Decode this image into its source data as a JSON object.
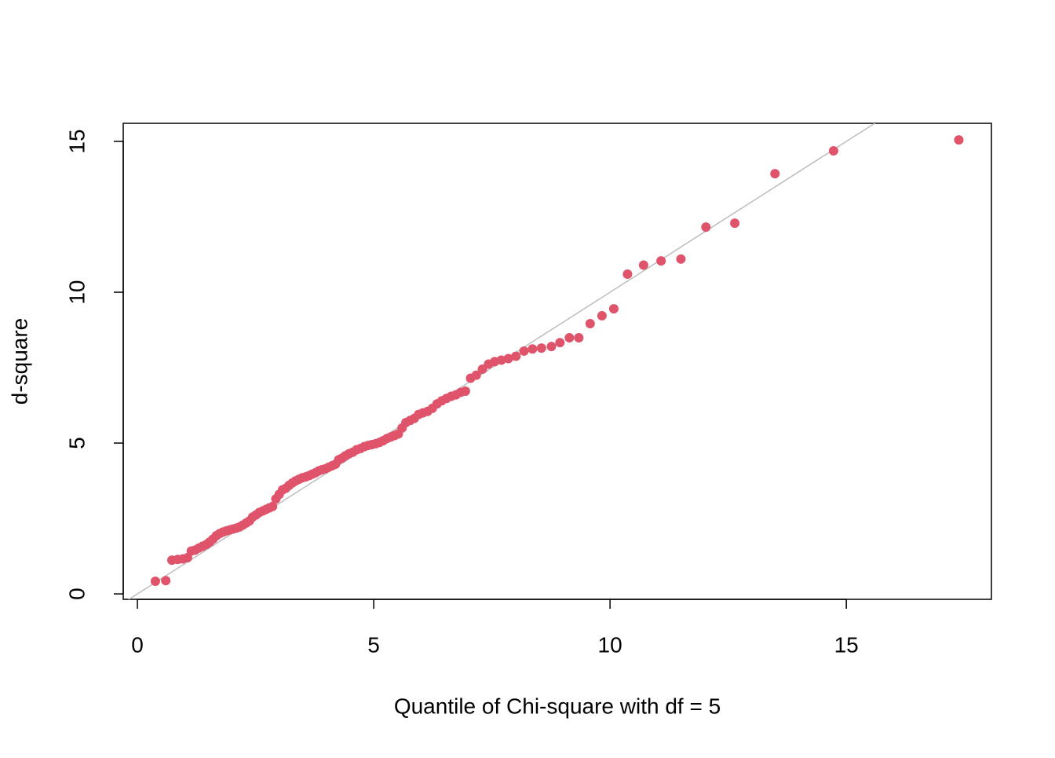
{
  "chart_data": {
    "type": "scatter",
    "x_label": "Quantile of Chi-square with df = 5",
    "y_label": "d-square",
    "color": "#df536b",
    "reference_line": {
      "slope": 1,
      "intercept": 0,
      "color": "#bebebe"
    },
    "xlim": [
      -0.3,
      18.07
    ],
    "ylim": [
      -0.18,
      15.6
    ],
    "xticks": [
      0,
      5,
      10,
      15
    ],
    "yticks": [
      0,
      5,
      10,
      15
    ],
    "x": [
      0.38,
      0.6,
      0.73,
      0.85,
      0.96,
      1.06,
      1.14,
      1.22,
      1.3,
      1.38,
      1.46,
      1.53,
      1.6,
      1.67,
      1.74,
      1.81,
      1.88,
      1.95,
      2.02,
      2.09,
      2.16,
      2.23,
      2.3,
      2.37,
      2.44,
      2.51,
      2.58,
      2.65,
      2.72,
      2.79,
      2.86,
      2.93,
      3.0,
      3.07,
      3.14,
      3.21,
      3.28,
      3.35,
      3.42,
      3.49,
      3.56,
      3.63,
      3.7,
      3.77,
      3.84,
      3.91,
      3.98,
      4.05,
      4.12,
      4.19,
      4.26,
      4.33,
      4.4,
      4.48,
      4.56,
      4.64,
      4.72,
      4.8,
      4.88,
      4.96,
      5.04,
      5.12,
      5.2,
      5.28,
      5.36,
      5.44,
      5.52,
      5.6,
      5.68,
      5.77,
      5.86,
      5.95,
      6.04,
      6.14,
      6.24,
      6.34,
      6.44,
      6.54,
      6.64,
      6.74,
      6.84,
      6.94,
      7.05,
      7.17,
      7.3,
      7.43,
      7.56,
      7.7,
      7.85,
      8.01,
      8.18,
      8.36,
      8.55,
      8.76,
      8.94,
      9.14,
      9.34,
      9.58,
      9.83,
      10.08,
      10.37,
      10.71,
      11.08,
      11.5,
      12.03,
      12.64,
      13.49,
      14.73,
      17.38
    ],
    "values": [
      0.42,
      0.44,
      1.12,
      1.14,
      1.16,
      1.2,
      1.42,
      1.45,
      1.52,
      1.58,
      1.64,
      1.72,
      1.82,
      1.93,
      2.0,
      2.05,
      2.09,
      2.12,
      2.15,
      2.18,
      2.22,
      2.28,
      2.35,
      2.42,
      2.55,
      2.62,
      2.7,
      2.75,
      2.8,
      2.85,
      2.9,
      3.15,
      3.3,
      3.45,
      3.5,
      3.6,
      3.68,
      3.75,
      3.8,
      3.85,
      3.88,
      3.92,
      3.97,
      4.02,
      4.08,
      4.12,
      4.15,
      4.2,
      4.25,
      4.3,
      4.45,
      4.5,
      4.58,
      4.65,
      4.7,
      4.78,
      4.82,
      4.88,
      4.92,
      4.95,
      4.98,
      5.02,
      5.08,
      5.15,
      5.2,
      5.25,
      5.3,
      5.5,
      5.68,
      5.75,
      5.82,
      5.95,
      6.0,
      6.05,
      6.15,
      6.3,
      6.4,
      6.48,
      6.55,
      6.6,
      6.68,
      6.72,
      7.15,
      7.25,
      7.45,
      7.62,
      7.7,
      7.75,
      7.8,
      7.88,
      8.05,
      8.12,
      8.15,
      8.2,
      8.33,
      8.49,
      8.49,
      8.96,
      9.22,
      9.45,
      10.6,
      10.9,
      11.04,
      11.1,
      12.16,
      12.29,
      13.93,
      14.69,
      15.05
    ]
  }
}
